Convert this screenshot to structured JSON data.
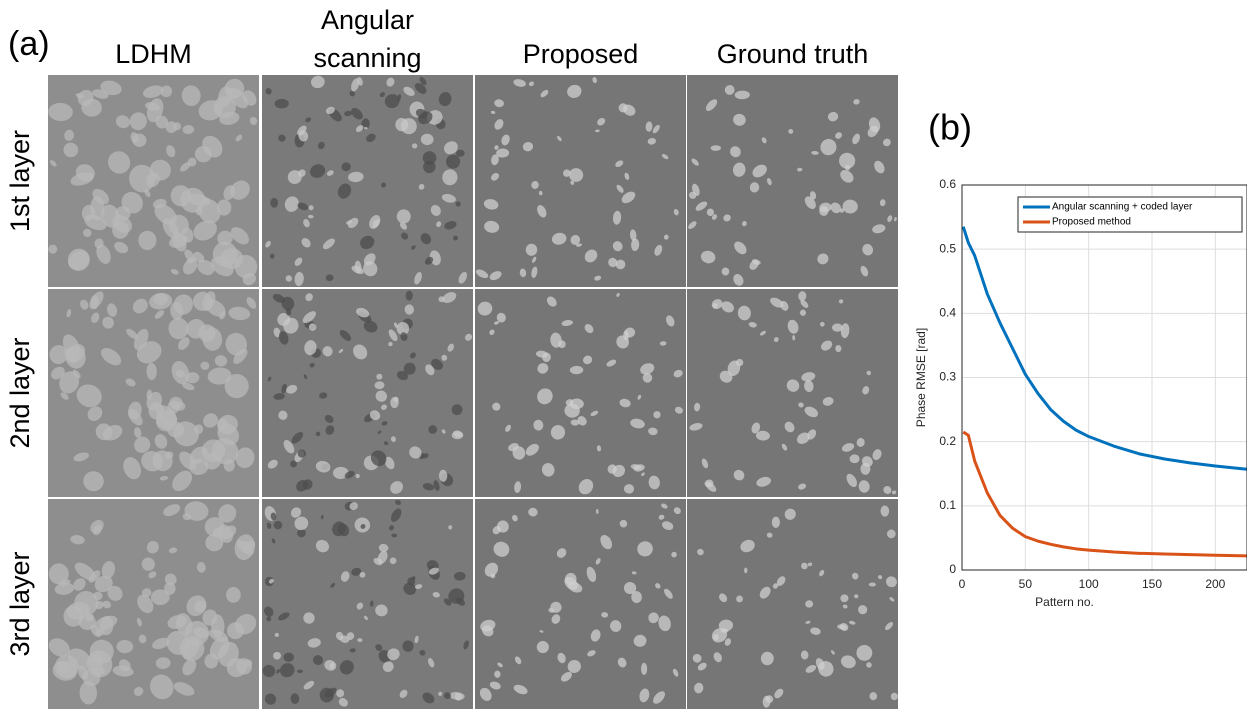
{
  "panel_a": {
    "label": "(a)",
    "columns": [
      [
        "LDHM"
      ],
      [
        "Angular",
        "scanning"
      ],
      [
        "Proposed"
      ],
      [
        "Ground truth"
      ]
    ],
    "rows": [
      "1st layer",
      "2nd layer",
      "3rd layer"
    ]
  },
  "chart_data": {
    "type": "line",
    "panel_label": "(b)",
    "xlabel": "Pattern no.",
    "ylabel": "Phase RMSE [rad]",
    "x": [
      1,
      5,
      10,
      20,
      30,
      40,
      50,
      60,
      70,
      80,
      90,
      100,
      120,
      140,
      160,
      180,
      200,
      225
    ],
    "series": [
      {
        "name": "Angular scanning + coded layer",
        "color": "#0072bd",
        "values": [
          0.535,
          0.51,
          0.49,
          0.43,
          0.385,
          0.345,
          0.305,
          0.275,
          0.25,
          0.232,
          0.218,
          0.208,
          0.193,
          0.181,
          0.173,
          0.167,
          0.162,
          0.157
        ]
      },
      {
        "name": "Proposed method",
        "color": "#d95319",
        "values": [
          0.215,
          0.21,
          0.17,
          0.12,
          0.085,
          0.065,
          0.052,
          0.045,
          0.04,
          0.036,
          0.033,
          0.031,
          0.028,
          0.026,
          0.025,
          0.024,
          0.023,
          0.022
        ]
      }
    ],
    "xlim": [
      0,
      225
    ],
    "xticks": [
      0,
      50,
      100,
      150,
      200
    ],
    "ylim": [
      0,
      0.6
    ],
    "yticks": [
      0,
      0.1,
      0.2,
      0.3,
      0.4,
      0.5,
      0.6
    ],
    "grid": true,
    "legend": "upper right"
  }
}
